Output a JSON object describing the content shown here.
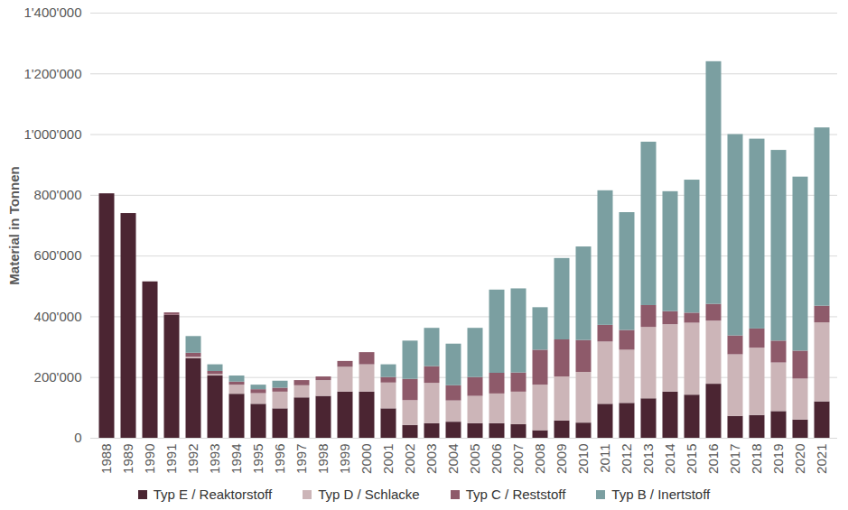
{
  "chart_data": {
    "type": "bar",
    "stacked": true,
    "grid": true,
    "legend": "bottom",
    "y_label": "Material in Tonnen",
    "categories": [
      "1988",
      "1989",
      "1990",
      "1991",
      "1992",
      "1993",
      "1994",
      "1995",
      "1996",
      "1997",
      "1998",
      "1999",
      "2000",
      "2001",
      "2002",
      "2003",
      "2004",
      "2005",
      "2006",
      "2007",
      "2008",
      "2009",
      "2010",
      "2011",
      "2012",
      "2013",
      "2014",
      "2015",
      "2016",
      "2017",
      "2018",
      "2019",
      "2020",
      "2021"
    ],
    "ylim": [
      0,
      1400000
    ],
    "yticks": [
      {
        "value": 0,
        "label": "0"
      },
      {
        "value": 200000,
        "label": "200'000"
      },
      {
        "value": 400000,
        "label": "400'000"
      },
      {
        "value": 600000,
        "label": "600'000"
      },
      {
        "value": 800000,
        "label": "800'000"
      },
      {
        "value": 1000000,
        "label": "1'000'000"
      },
      {
        "value": 1200000,
        "label": "1'200'000"
      },
      {
        "value": 1400000,
        "label": "1'400'000"
      }
    ],
    "series": [
      {
        "name": "Typ E / Reaktorstoff",
        "color": "#4b2532",
        "values": [
          805000,
          740000,
          515000,
          405000,
          262000,
          205000,
          145000,
          112000,
          97000,
          133000,
          138000,
          152000,
          152000,
          97000,
          42000,
          48000,
          53000,
          48000,
          48000,
          45000,
          25000,
          57000,
          50000,
          112000,
          115000,
          130000,
          152000,
          142000,
          178000,
          72000,
          75000,
          88000,
          60000,
          120000
        ]
      },
      {
        "name": "Typ D / Schlacke",
        "color": "#ccb5b8",
        "values": [
          0,
          0,
          0,
          0,
          5000,
          5000,
          30000,
          35000,
          55000,
          40000,
          52000,
          82000,
          90000,
          85000,
          82000,
          133000,
          70000,
          90000,
          98000,
          107000,
          150000,
          145000,
          167000,
          205000,
          175000,
          235000,
          222000,
          237000,
          208000,
          203000,
          222000,
          160000,
          135000,
          260000
        ]
      },
      {
        "name": "Typ C / Reststoff",
        "color": "#8e5a6a",
        "values": [
          0,
          0,
          0,
          8000,
          13000,
          10000,
          10000,
          13000,
          13000,
          17000,
          12000,
          19000,
          40000,
          18000,
          70000,
          55000,
          50000,
          62000,
          68000,
          63000,
          115000,
          122000,
          105000,
          55000,
          65000,
          72000,
          43000,
          33000,
          55000,
          62000,
          63000,
          72000,
          92000,
          55000
        ]
      },
      {
        "name": "Typ B / Inertstoff",
        "color": "#7b9fa1",
        "values": [
          0,
          0,
          0,
          0,
          55000,
          22000,
          20000,
          15000,
          23000,
          0,
          0,
          0,
          0,
          42000,
          126000,
          126000,
          137000,
          162000,
          274000,
          277000,
          140000,
          268000,
          308000,
          443000,
          388000,
          538000,
          395000,
          438000,
          799000,
          663000,
          625000,
          628000,
          573000,
          587000
        ]
      }
    ]
  }
}
